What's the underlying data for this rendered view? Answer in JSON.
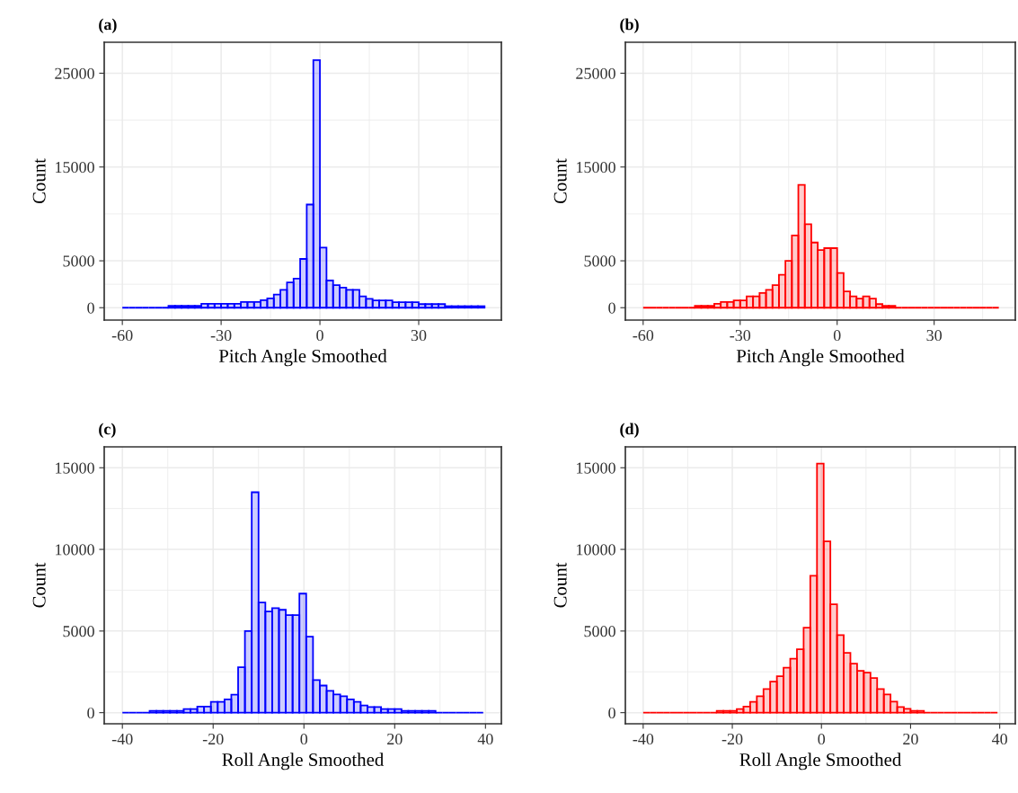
{
  "chart_data": [
    {
      "type": "histogram",
      "title": "(a)",
      "xlabel": "Pitch Angle Smoothed",
      "ylabel": "Count",
      "color": "#0000ff",
      "bins": [
        -60,
        -58,
        -56,
        -54,
        -52,
        -50,
        -48,
        -46,
        -44,
        -42,
        -40,
        -38,
        -36,
        -34,
        -32,
        -30,
        -28,
        -26,
        -24,
        -22,
        -20,
        -18,
        -16,
        -14,
        -12,
        -10,
        -8,
        -6,
        -4,
        -2,
        0,
        2,
        4,
        6,
        8,
        10,
        12,
        14,
        16,
        18,
        20,
        22,
        24,
        26,
        28,
        30,
        32,
        34,
        36,
        38,
        40,
        42,
        44,
        46,
        48,
        50
      ],
      "values": [
        0,
        0,
        0,
        0,
        0,
        0,
        0,
        190,
        190,
        190,
        190,
        190,
        420,
        420,
        420,
        420,
        420,
        420,
        600,
        600,
        600,
        800,
        1000,
        1400,
        1900,
        2700,
        3100,
        5200,
        11000,
        26400,
        6400,
        2900,
        2400,
        2150,
        1900,
        1900,
        1200,
        950,
        770,
        770,
        770,
        580,
        580,
        580,
        580,
        380,
        380,
        380,
        380,
        160,
        160,
        160,
        160,
        160,
        160
      ],
      "xlim": [
        -65.5,
        55.1
      ],
      "ylim": [
        -1320,
        28300
      ],
      "xticks": [
        -60,
        -30,
        0,
        30
      ],
      "yticks": [
        0,
        5000,
        15000,
        25000
      ],
      "grid": true
    },
    {
      "type": "histogram",
      "title": "(b)",
      "xlabel": "Pitch Angle Smoothed",
      "ylabel": "Count",
      "color": "#ff0000",
      "bins": [
        -60,
        -58,
        -56,
        -54,
        -52,
        -50,
        -48,
        -46,
        -44,
        -42,
        -40,
        -38,
        -36,
        -34,
        -32,
        -30,
        -28,
        -26,
        -24,
        -22,
        -20,
        -18,
        -16,
        -14,
        -12,
        -10,
        -8,
        -6,
        -4,
        -2,
        0,
        2,
        4,
        6,
        8,
        10,
        12,
        14,
        16,
        18,
        20,
        22,
        24,
        26,
        28,
        30,
        32,
        34,
        36,
        38,
        40,
        42,
        44,
        46,
        48,
        50
      ],
      "values": [
        0,
        0,
        0,
        0,
        0,
        0,
        0,
        0,
        190,
        190,
        190,
        420,
        600,
        600,
        770,
        770,
        1200,
        1200,
        1570,
        1900,
        2400,
        3500,
        5000,
        7700,
        13100,
        8900,
        6950,
        6150,
        6350,
        6350,
        3700,
        1730,
        1200,
        960,
        1200,
        960,
        380,
        190,
        190,
        0,
        0,
        0,
        0,
        0,
        0,
        0,
        0,
        0,
        0,
        0,
        0,
        0,
        0,
        0,
        0
      ],
      "xlim": [
        -65.5,
        55.1
      ],
      "ylim": [
        -1320,
        28300
      ],
      "xticks": [
        -60,
        -30,
        0,
        30
      ],
      "yticks": [
        0,
        5000,
        15000,
        25000
      ],
      "grid": true
    },
    {
      "type": "histogram",
      "title": "(c)",
      "xlabel": "Roll Angle Smoothed",
      "ylabel": "Count",
      "color": "#0000ff",
      "bins": [
        -40,
        -38.5,
        -37,
        -35.5,
        -34,
        -32.5,
        -31,
        -29.5,
        -28,
        -26.5,
        -25,
        -23.5,
        -22,
        -20.5,
        -19,
        -17.5,
        -16,
        -14.5,
        -13,
        -11.5,
        -10,
        -8.5,
        -7,
        -5.5,
        -4,
        -2.5,
        -1,
        0.5,
        2,
        3.5,
        5,
        6.5,
        8,
        9.5,
        11,
        12.5,
        14,
        15.5,
        17,
        18.5,
        20,
        21.5,
        23,
        24.5,
        26,
        27.5,
        29,
        30.5,
        32,
        33.5,
        35,
        36.5,
        38,
        39.5
      ],
      "values": [
        0,
        0,
        0,
        0,
        110,
        110,
        110,
        110,
        110,
        220,
        220,
        370,
        370,
        660,
        660,
        810,
        1100,
        2780,
        5000,
        13500,
        6750,
        6200,
        6400,
        6300,
        5980,
        5980,
        7290,
        4650,
        2000,
        1660,
        1340,
        1120,
        1010,
        810,
        660,
        440,
        350,
        350,
        220,
        220,
        220,
        110,
        110,
        110,
        110,
        110,
        0,
        0,
        0,
        0,
        0,
        0,
        0
      ],
      "xlim": [
        -44,
        43.5
      ],
      "ylim": [
        -680,
        16280
      ],
      "xticks": [
        -40,
        -20,
        0,
        20,
        40
      ],
      "yticks": [
        0,
        5000,
        10000,
        15000
      ],
      "grid": true
    },
    {
      "type": "histogram",
      "title": "(d)",
      "xlabel": "Roll Angle Smoothed",
      "ylabel": "Count",
      "color": "#ff0000",
      "bins": [
        -40,
        -38.5,
        -37,
        -35.5,
        -34,
        -32.5,
        -31,
        -29.5,
        -28,
        -26.5,
        -25,
        -23.5,
        -22,
        -20.5,
        -19,
        -17.5,
        -16,
        -14.5,
        -13,
        -11.5,
        -10,
        -8.5,
        -7,
        -5.5,
        -4,
        -2.5,
        -1,
        0.5,
        2,
        3.5,
        5,
        6.5,
        8,
        9.5,
        11,
        12.5,
        14,
        15.5,
        17,
        18.5,
        20,
        21.5,
        23,
        24.5,
        26,
        27.5,
        29,
        30.5,
        32,
        33.5,
        35,
        36.5,
        38,
        39.5
      ],
      "values": [
        0,
        0,
        0,
        0,
        0,
        0,
        0,
        0,
        0,
        0,
        0,
        110,
        110,
        110,
        220,
        370,
        660,
        1010,
        1450,
        1900,
        2230,
        2760,
        3310,
        3880,
        5200,
        8390,
        15250,
        10490,
        6640,
        4750,
        3660,
        3000,
        2560,
        2450,
        2120,
        1450,
        1120,
        680,
        350,
        240,
        110,
        110,
        0,
        0,
        0,
        0,
        0,
        0,
        0,
        0,
        0,
        0,
        0
      ],
      "xlim": [
        -44,
        43.5
      ],
      "ylim": [
        -680,
        16280
      ],
      "xticks": [
        -40,
        -20,
        0,
        20,
        40
      ],
      "yticks": [
        0,
        5000,
        10000,
        15000
      ],
      "grid": true
    }
  ]
}
